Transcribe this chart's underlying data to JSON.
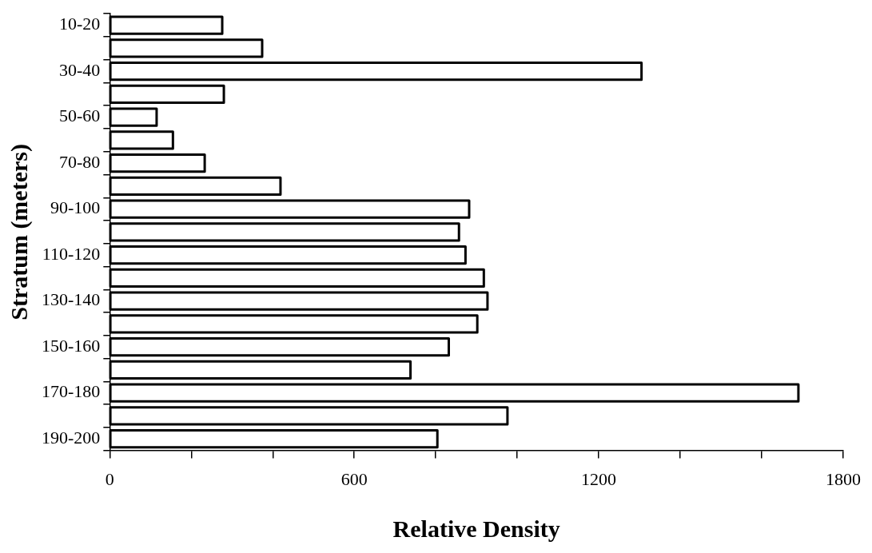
{
  "chart_data": {
    "type": "bar",
    "orientation": "horizontal",
    "xlabel": "Relative Density",
    "ylabel": "Stratum (meters)",
    "categories": [
      "10-20",
      null,
      "30-40",
      null,
      "50-60",
      null,
      "70-80",
      null,
      "90-100",
      null,
      "110-120",
      null,
      "130-140",
      null,
      "150-160",
      null,
      "170-180",
      null,
      "190-200"
    ],
    "values": [
      276,
      374,
      1305,
      280,
      115,
      155,
      233,
      419,
      882,
      857,
      873,
      918,
      927,
      902,
      832,
      738,
      1690,
      976,
      804
    ],
    "color": "#ffffff",
    "xlim": [
      0,
      1800
    ],
    "xticks": [
      0,
      {
        "value": 200,
        "label": null
      },
      {
        "value": 400,
        "label": null
      },
      600,
      {
        "value": 800,
        "label": null
      },
      {
        "value": 1000,
        "label": null
      },
      1200,
      {
        "value": 1400,
        "label": null
      },
      {
        "value": 1600,
        "label": null
      },
      1800
    ],
    "grid": false,
    "legend": false
  }
}
